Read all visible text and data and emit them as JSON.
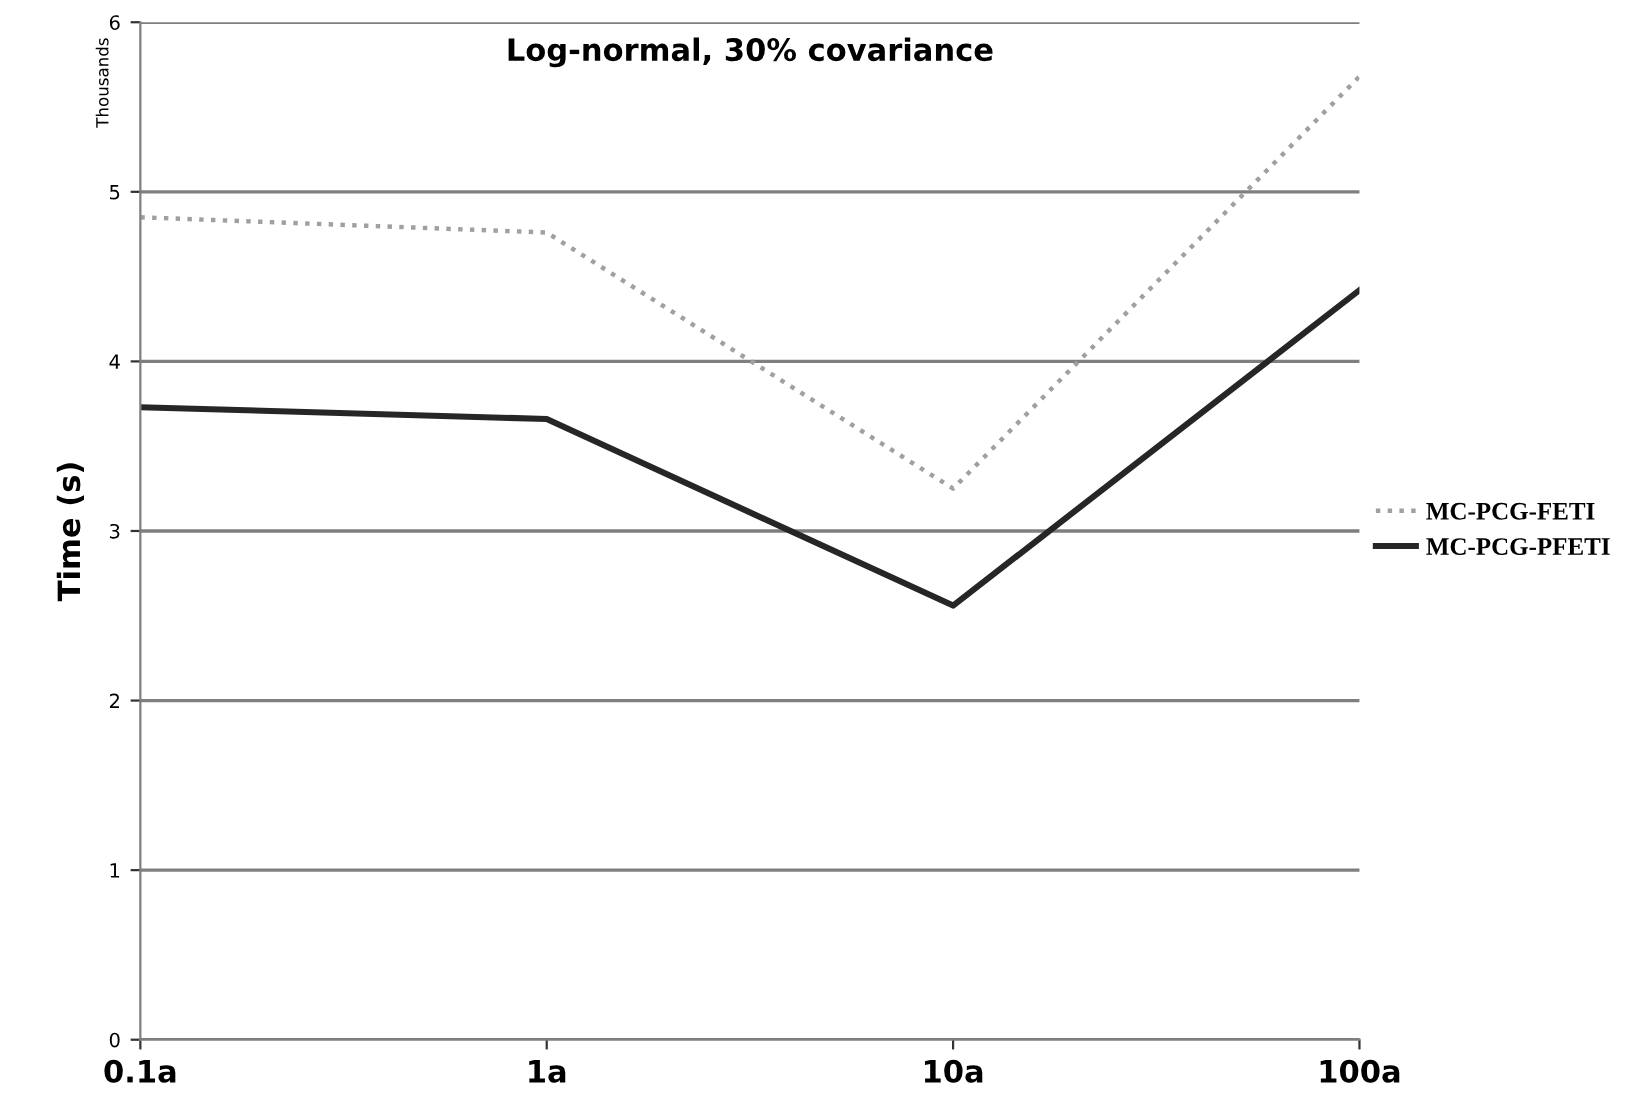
{
  "chart_data": {
    "type": "line",
    "title": "Log-normal, 30% covariance",
    "ylabel": "Time (s)",
    "annotations": [
      "Thousands"
    ],
    "categories": [
      "0.1a",
      "1a",
      "10a",
      "100a"
    ],
    "series": [
      {
        "name": "MC-PCG-FETI",
        "color": "#a0a0a0",
        "line_style": "dotted",
        "values": [
          4.85,
          4.76,
          3.25,
          5.68
        ]
      },
      {
        "name": "MC-PCG-PFETI",
        "color": "#262626",
        "line_style": "solid",
        "values": [
          3.73,
          3.66,
          2.56,
          4.42
        ]
      }
    ],
    "ylim": [
      0,
      6
    ],
    "yticks": [
      0,
      1,
      2,
      3,
      4,
      5,
      6
    ],
    "grid": "y",
    "legend": "right",
    "marker": "none"
  }
}
